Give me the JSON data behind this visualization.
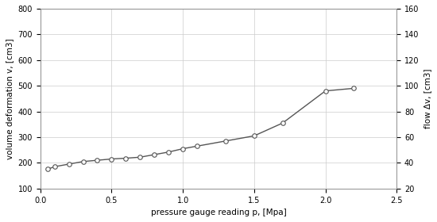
{
  "title": "",
  "xlabel": "pressure gauge reading p, [Mpa]",
  "ylabel_left": "volume deformation v, [cm3]",
  "ylabel_right": "flow Δv, [cm3]",
  "x_data": [
    0.05,
    0.1,
    0.2,
    0.3,
    0.4,
    0.5,
    0.6,
    0.7,
    0.8,
    0.9,
    1.0,
    1.1,
    1.3,
    1.5,
    1.7,
    2.0,
    2.2
  ],
  "y_left": [
    175,
    185,
    195,
    205,
    210,
    215,
    218,
    222,
    232,
    242,
    255,
    265,
    285,
    305,
    355,
    480,
    490
  ],
  "xlim": [
    0.0,
    2.5
  ],
  "ylim_left": [
    100,
    800
  ],
  "ylim_right": [
    20,
    160
  ],
  "yticks_left": [
    100,
    200,
    300,
    400,
    500,
    600,
    700,
    800
  ],
  "yticks_right": [
    20,
    40,
    60,
    80,
    100,
    120,
    140,
    160
  ],
  "xticks": [
    0.0,
    0.5,
    1.0,
    1.5,
    2.0,
    2.5
  ],
  "line_color": "#555555",
  "marker": "o",
  "marker_size": 4,
  "marker_facecolor": "white",
  "marker_edgecolor": "#555555",
  "grid_color": "#cccccc",
  "background_color": "#ffffff",
  "figure_bg": "#f0f0f0"
}
